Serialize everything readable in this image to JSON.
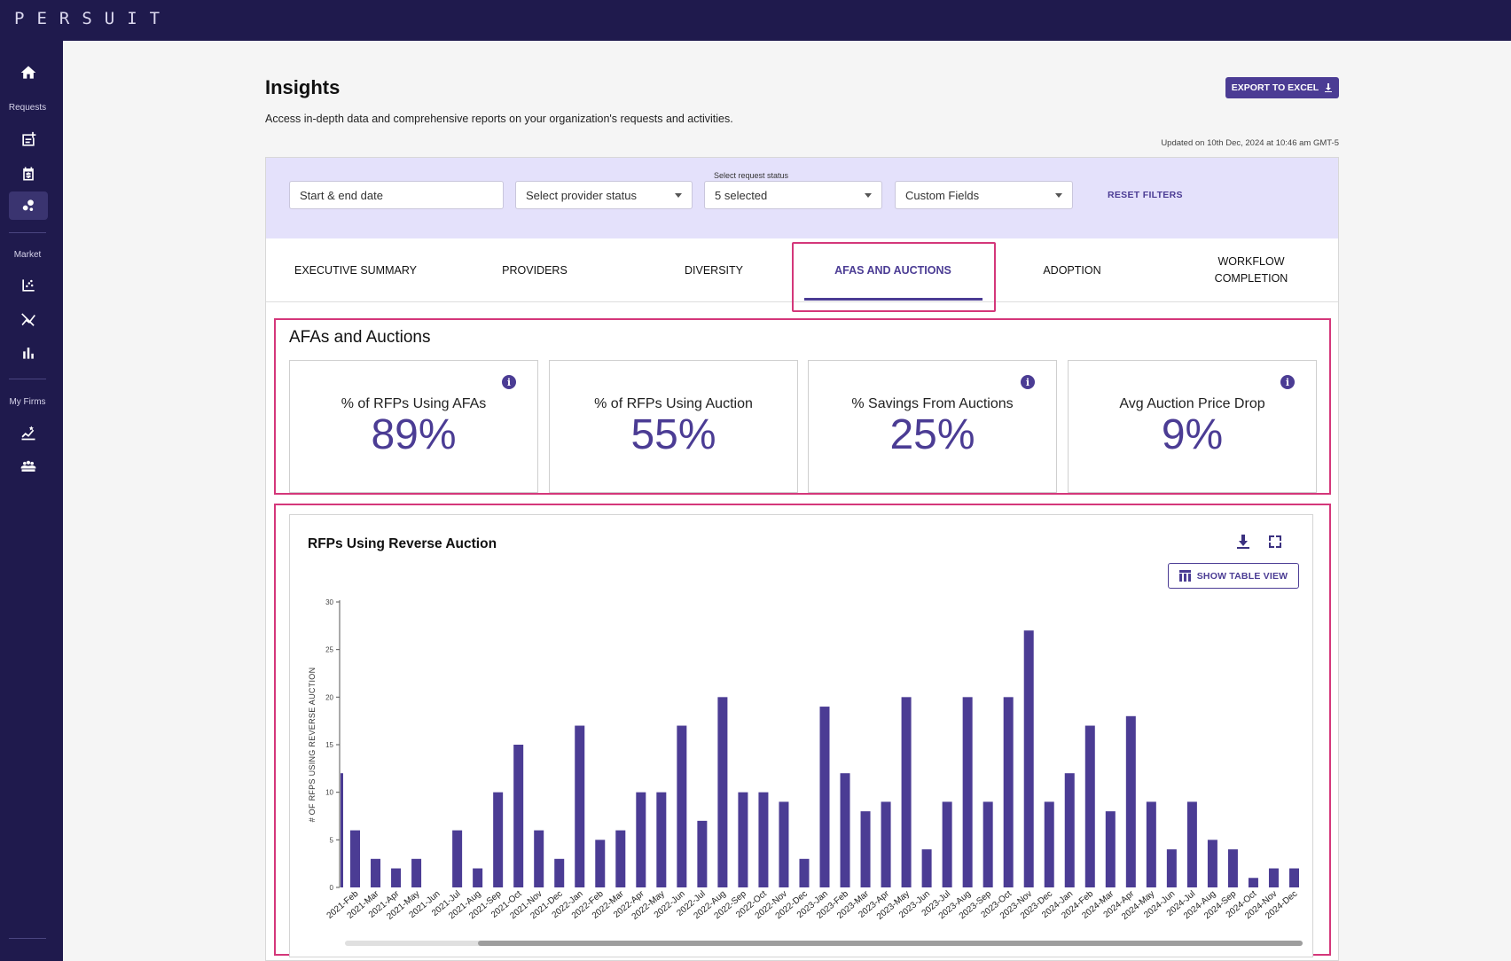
{
  "app": {
    "logo": "PERSUIT"
  },
  "nav": {
    "sections": {
      "requests": "Requests",
      "market": "Market",
      "my_firms": "My Firms"
    }
  },
  "header": {
    "title": "Insights",
    "subtitle": "Access in-depth data and comprehensive reports on your organization's requests and activities.",
    "export_label": "EXPORT TO EXCEL",
    "updated": "Updated on 10th Dec, 2024 at 10:46 am GMT-5"
  },
  "filters": {
    "date_placeholder": "Start & end date",
    "provider_status": "Select provider status",
    "request_status_label": "Select request status",
    "request_status_value": "5 selected",
    "custom_fields": "Custom Fields",
    "reset_label": "RESET FILTERS"
  },
  "tabs": [
    {
      "label": "EXECUTIVE SUMMARY"
    },
    {
      "label": "PROVIDERS"
    },
    {
      "label": "DIVERSITY"
    },
    {
      "label": "AFAS AND AUCTIONS",
      "active": true
    },
    {
      "label": "ADOPTION"
    },
    {
      "label": "WORKFLOW COMPLETION"
    }
  ],
  "section": {
    "title": "AFAs and Auctions"
  },
  "kpis": [
    {
      "label": "% of RFPs Using AFAs",
      "value": "89%",
      "info": true
    },
    {
      "label": "% of RFPs Using Auction",
      "value": "55%",
      "info": false
    },
    {
      "label": "% Savings From Auctions",
      "value": "25%",
      "info": true
    },
    {
      "label": "Avg Auction Price Drop",
      "value": "9%",
      "info": true
    }
  ],
  "chart": {
    "title": "RFPs Using Reverse Auction",
    "table_button": "SHOW TABLE VIEW",
    "icons": [
      "download-icon",
      "fullscreen-icon",
      "table-icon"
    ]
  },
  "chart_data": {
    "type": "bar",
    "ylabel": "# OF RFPS USING REVERSE AUCTION",
    "xlabel": "",
    "yticks": [
      0,
      5,
      10,
      15,
      20,
      25,
      30
    ],
    "ylim": [
      0,
      30
    ],
    "categories": [
      "2021-Feb",
      "2021-Mar",
      "2021-Apr",
      "2021-May",
      "2021-Jun",
      "2021-Jul",
      "2021-Aug",
      "2021-Sep",
      "2021-Oct",
      "2021-Nov",
      "2021-Dec",
      "2022-Jan",
      "2022-Feb",
      "2022-Mar",
      "2022-Apr",
      "2022-May",
      "2022-Jun",
      "2022-Jul",
      "2022-Aug",
      "2022-Sep",
      "2022-Oct",
      "2022-Nov",
      "2022-Dec",
      "2023-Jan",
      "2023-Feb",
      "2023-Mar",
      "2023-Apr",
      "2023-May",
      "2023-Jun",
      "2023-Jul",
      "2023-Aug",
      "2023-Sep",
      "2023-Oct",
      "2023-Nov",
      "2023-Dec",
      "2024-Jan",
      "2024-Feb",
      "2024-Mar",
      "2024-Apr",
      "2024-May",
      "2024-Jun",
      "2024-Jul",
      "2024-Aug",
      "2024-Sep",
      "2024-Oct",
      "2024-Nov",
      "2024-Dec"
    ],
    "values": [
      6,
      3,
      2,
      3,
      0,
      6,
      2,
      10,
      15,
      6,
      3,
      17,
      5,
      6,
      10,
      10,
      17,
      7,
      20,
      10,
      10,
      9,
      3,
      19,
      12,
      8,
      9,
      20,
      4,
      9,
      20,
      9,
      20,
      27,
      9,
      12,
      17,
      8,
      18,
      9,
      4,
      9,
      5,
      4,
      1,
      2,
      2
    ],
    "partial_first_bar": {
      "category": "before 2021-Feb",
      "value": 12
    }
  }
}
